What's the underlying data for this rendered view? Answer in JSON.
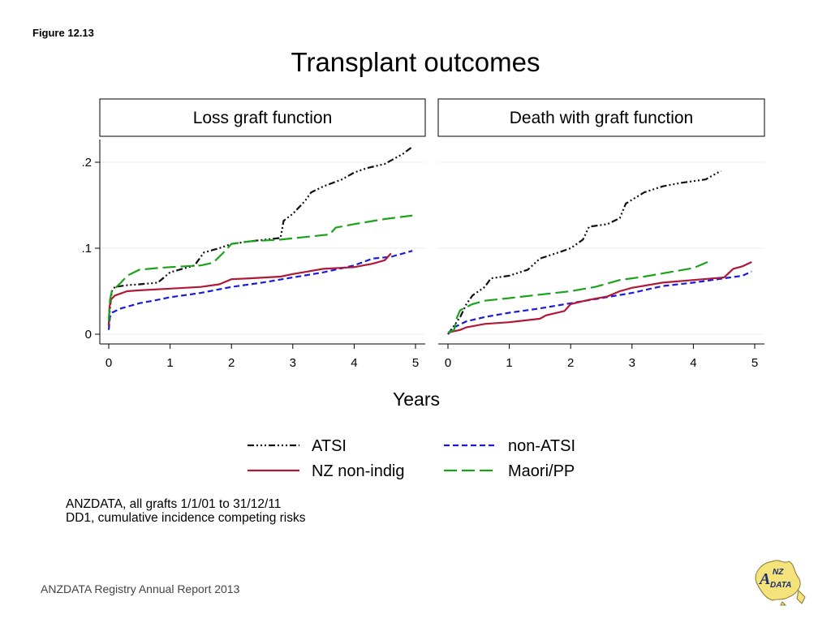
{
  "figure_label": "Figure 12.13",
  "title": "Transplant outcomes",
  "notes": [
    "ANZDATA, all grafts 1/1/01 to 31/12/11",
    "DD1, cumulative incidence competing risks"
  ],
  "footer": "ANZDATA Registry Annual Report 2013",
  "logo_text": "ANZ DATA",
  "series_styles": [
    {
      "name": "ATSI",
      "color": "#111111",
      "dash": "8,3,2,3,2,3,2,3"
    },
    {
      "name": "non-ATSI",
      "color": "#1a1adb",
      "dash": "7,4"
    },
    {
      "name": "NZ non-indig",
      "color": "#b01838",
      "dash": ""
    },
    {
      "name": "Maori/PP",
      "color": "#1aa31a",
      "dash": "16,6"
    }
  ],
  "chart_data": [
    {
      "type": "line",
      "title": "Loss graft function",
      "xlabel": "Years",
      "xlim": [
        0,
        5
      ],
      "ylim": [
        0,
        0.22
      ],
      "xticks": [
        0,
        1,
        2,
        3,
        4,
        5
      ],
      "yticks": [
        0,
        0.1,
        0.2
      ],
      "ytick_labels": [
        "0",
        ".1",
        ".2"
      ],
      "grid": true,
      "series": [
        {
          "name": "ATSI",
          "points": [
            [
              0,
              0.01
            ],
            [
              0.02,
              0.03
            ],
            [
              0.05,
              0.05
            ],
            [
              0.1,
              0.055
            ],
            [
              0.3,
              0.057
            ],
            [
              0.5,
              0.058
            ],
            [
              0.8,
              0.06
            ],
            [
              1.0,
              0.072
            ],
            [
              1.3,
              0.078
            ],
            [
              1.4,
              0.08
            ],
            [
              1.55,
              0.095
            ],
            [
              1.8,
              0.1
            ],
            [
              2.0,
              0.105
            ],
            [
              2.3,
              0.108
            ],
            [
              2.8,
              0.112
            ],
            [
              2.85,
              0.132
            ],
            [
              3.0,
              0.14
            ],
            [
              3.2,
              0.155
            ],
            [
              3.3,
              0.165
            ],
            [
              3.5,
              0.172
            ],
            [
              3.8,
              0.18
            ],
            [
              4.0,
              0.188
            ],
            [
              4.2,
              0.193
            ],
            [
              4.5,
              0.198
            ],
            [
              4.8,
              0.21
            ],
            [
              4.95,
              0.218
            ]
          ]
        },
        {
          "name": "non-ATSI",
          "points": [
            [
              0,
              0.005
            ],
            [
              0.02,
              0.02
            ],
            [
              0.05,
              0.025
            ],
            [
              0.2,
              0.03
            ],
            [
              0.5,
              0.036
            ],
            [
              0.8,
              0.04
            ],
            [
              1.0,
              0.043
            ],
            [
              1.5,
              0.048
            ],
            [
              2.0,
              0.055
            ],
            [
              2.5,
              0.06
            ],
            [
              3.0,
              0.066
            ],
            [
              3.5,
              0.072
            ],
            [
              4.0,
              0.08
            ],
            [
              4.3,
              0.088
            ],
            [
              4.6,
              0.09
            ],
            [
              4.95,
              0.097
            ]
          ]
        },
        {
          "name": "NZ non-indig",
          "points": [
            [
              0,
              0.01
            ],
            [
              0.01,
              0.03
            ],
            [
              0.03,
              0.04
            ],
            [
              0.1,
              0.045
            ],
            [
              0.3,
              0.05
            ],
            [
              0.5,
              0.051
            ],
            [
              1.0,
              0.053
            ],
            [
              1.5,
              0.055
            ],
            [
              1.8,
              0.058
            ],
            [
              2.0,
              0.064
            ],
            [
              2.3,
              0.065
            ],
            [
              2.8,
              0.067
            ],
            [
              3.0,
              0.07
            ],
            [
              3.5,
              0.076
            ],
            [
              4.0,
              0.078
            ],
            [
              4.3,
              0.082
            ],
            [
              4.5,
              0.086
            ],
            [
              4.6,
              0.094
            ]
          ]
        },
        {
          "name": "Maori/PP",
          "points": [
            [
              0,
              0.015
            ],
            [
              0.02,
              0.04
            ],
            [
              0.05,
              0.05
            ],
            [
              0.2,
              0.06
            ],
            [
              0.3,
              0.068
            ],
            [
              0.5,
              0.075
            ],
            [
              0.8,
              0.077
            ],
            [
              1.0,
              0.078
            ],
            [
              1.5,
              0.08
            ],
            [
              1.7,
              0.083
            ],
            [
              1.9,
              0.097
            ],
            [
              2.0,
              0.105
            ],
            [
              2.3,
              0.108
            ],
            [
              2.8,
              0.11
            ],
            [
              3.2,
              0.113
            ],
            [
              3.6,
              0.116
            ],
            [
              3.7,
              0.124
            ],
            [
              4.0,
              0.128
            ],
            [
              4.5,
              0.134
            ],
            [
              4.95,
              0.138
            ]
          ]
        }
      ]
    },
    {
      "type": "line",
      "title": "Death with graft function",
      "xlabel": "Years",
      "xlim": [
        0,
        5
      ],
      "ylim": [
        0,
        0.22
      ],
      "xticks": [
        0,
        1,
        2,
        3,
        4,
        5
      ],
      "yticks": [
        0,
        0.1,
        0.2
      ],
      "grid": true,
      "series": [
        {
          "name": "ATSI",
          "points": [
            [
              0,
              0
            ],
            [
              0.1,
              0.01
            ],
            [
              0.2,
              0.02
            ],
            [
              0.3,
              0.035
            ],
            [
              0.4,
              0.045
            ],
            [
              0.6,
              0.055
            ],
            [
              0.7,
              0.065
            ],
            [
              1.0,
              0.068
            ],
            [
              1.3,
              0.075
            ],
            [
              1.5,
              0.088
            ],
            [
              1.8,
              0.095
            ],
            [
              2.0,
              0.1
            ],
            [
              2.2,
              0.11
            ],
            [
              2.3,
              0.125
            ],
            [
              2.6,
              0.128
            ],
            [
              2.8,
              0.135
            ],
            [
              2.9,
              0.152
            ],
            [
              3.2,
              0.165
            ],
            [
              3.5,
              0.172
            ],
            [
              3.8,
              0.176
            ],
            [
              4.2,
              0.18
            ],
            [
              4.45,
              0.19
            ]
          ]
        },
        {
          "name": "non-ATSI",
          "points": [
            [
              0,
              0
            ],
            [
              0.1,
              0.008
            ],
            [
              0.3,
              0.015
            ],
            [
              0.6,
              0.02
            ],
            [
              1.0,
              0.025
            ],
            [
              1.5,
              0.03
            ],
            [
              2.0,
              0.036
            ],
            [
              2.5,
              0.042
            ],
            [
              3.0,
              0.048
            ],
            [
              3.5,
              0.056
            ],
            [
              4.0,
              0.06
            ],
            [
              4.5,
              0.065
            ],
            [
              4.8,
              0.068
            ],
            [
              4.95,
              0.073
            ]
          ]
        },
        {
          "name": "NZ non-indig",
          "points": [
            [
              0,
              0.002
            ],
            [
              0.2,
              0.005
            ],
            [
              0.3,
              0.008
            ],
            [
              0.6,
              0.012
            ],
            [
              1.0,
              0.014
            ],
            [
              1.5,
              0.018
            ],
            [
              1.6,
              0.022
            ],
            [
              1.9,
              0.027
            ],
            [
              2.0,
              0.035
            ],
            [
              2.3,
              0.04
            ],
            [
              2.6,
              0.044
            ],
            [
              2.8,
              0.05
            ],
            [
              3.0,
              0.054
            ],
            [
              3.5,
              0.06
            ],
            [
              4.0,
              0.063
            ],
            [
              4.5,
              0.066
            ],
            [
              4.65,
              0.076
            ],
            [
              4.8,
              0.079
            ],
            [
              4.95,
              0.084
            ]
          ]
        },
        {
          "name": "Maori/PP",
          "points": [
            [
              0,
              0.002
            ],
            [
              0.1,
              0.005
            ],
            [
              0.15,
              0.02
            ],
            [
              0.2,
              0.028
            ],
            [
              0.4,
              0.035
            ],
            [
              0.6,
              0.039
            ],
            [
              1.0,
              0.042
            ],
            [
              1.5,
              0.046
            ],
            [
              2.0,
              0.05
            ],
            [
              2.4,
              0.055
            ],
            [
              2.8,
              0.063
            ],
            [
              3.2,
              0.067
            ],
            [
              3.6,
              0.072
            ],
            [
              4.0,
              0.077
            ],
            [
              4.3,
              0.086
            ]
          ]
        }
      ]
    }
  ],
  "legend": {
    "placement": "bottom",
    "items": [
      "ATSI",
      "non-ATSI",
      "NZ non-indig",
      "Maori/PP"
    ]
  }
}
